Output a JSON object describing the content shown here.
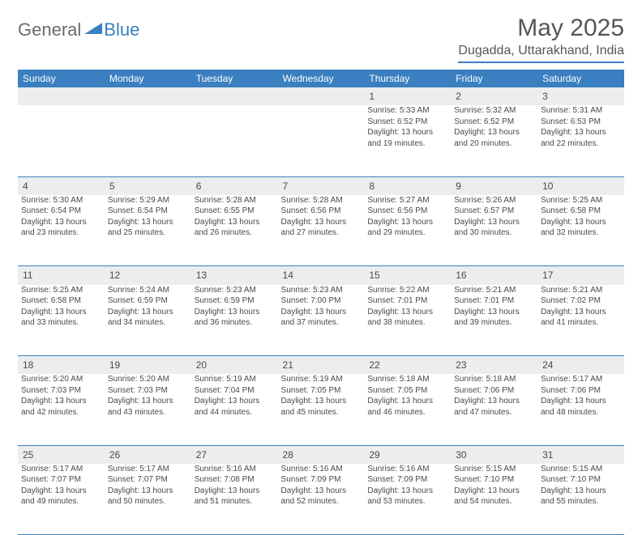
{
  "brand": {
    "name_a": "General",
    "name_b": "Blue"
  },
  "title": "May 2025",
  "location": "Dugadda, Uttarakhand, India",
  "colors": {
    "accent": "#3a7fbf",
    "header_text": "#ffffff",
    "daynum_bg": "#eceded"
  },
  "day_headers": [
    "Sunday",
    "Monday",
    "Tuesday",
    "Wednesday",
    "Thursday",
    "Friday",
    "Saturday"
  ],
  "weeks": [
    [
      null,
      null,
      null,
      null,
      {
        "n": "1",
        "sr": "5:33 AM",
        "ss": "6:52 PM",
        "dl": "13 hours and 19 minutes."
      },
      {
        "n": "2",
        "sr": "5:32 AM",
        "ss": "6:52 PM",
        "dl": "13 hours and 20 minutes."
      },
      {
        "n": "3",
        "sr": "5:31 AM",
        "ss": "6:53 PM",
        "dl": "13 hours and 22 minutes."
      }
    ],
    [
      {
        "n": "4",
        "sr": "5:30 AM",
        "ss": "6:54 PM",
        "dl": "13 hours and 23 minutes."
      },
      {
        "n": "5",
        "sr": "5:29 AM",
        "ss": "6:54 PM",
        "dl": "13 hours and 25 minutes."
      },
      {
        "n": "6",
        "sr": "5:28 AM",
        "ss": "6:55 PM",
        "dl": "13 hours and 26 minutes."
      },
      {
        "n": "7",
        "sr": "5:28 AM",
        "ss": "6:56 PM",
        "dl": "13 hours and 27 minutes."
      },
      {
        "n": "8",
        "sr": "5:27 AM",
        "ss": "6:56 PM",
        "dl": "13 hours and 29 minutes."
      },
      {
        "n": "9",
        "sr": "5:26 AM",
        "ss": "6:57 PM",
        "dl": "13 hours and 30 minutes."
      },
      {
        "n": "10",
        "sr": "5:25 AM",
        "ss": "6:58 PM",
        "dl": "13 hours and 32 minutes."
      }
    ],
    [
      {
        "n": "11",
        "sr": "5:25 AM",
        "ss": "6:58 PM",
        "dl": "13 hours and 33 minutes."
      },
      {
        "n": "12",
        "sr": "5:24 AM",
        "ss": "6:59 PM",
        "dl": "13 hours and 34 minutes."
      },
      {
        "n": "13",
        "sr": "5:23 AM",
        "ss": "6:59 PM",
        "dl": "13 hours and 36 minutes."
      },
      {
        "n": "14",
        "sr": "5:23 AM",
        "ss": "7:00 PM",
        "dl": "13 hours and 37 minutes."
      },
      {
        "n": "15",
        "sr": "5:22 AM",
        "ss": "7:01 PM",
        "dl": "13 hours and 38 minutes."
      },
      {
        "n": "16",
        "sr": "5:21 AM",
        "ss": "7:01 PM",
        "dl": "13 hours and 39 minutes."
      },
      {
        "n": "17",
        "sr": "5:21 AM",
        "ss": "7:02 PM",
        "dl": "13 hours and 41 minutes."
      }
    ],
    [
      {
        "n": "18",
        "sr": "5:20 AM",
        "ss": "7:03 PM",
        "dl": "13 hours and 42 minutes."
      },
      {
        "n": "19",
        "sr": "5:20 AM",
        "ss": "7:03 PM",
        "dl": "13 hours and 43 minutes."
      },
      {
        "n": "20",
        "sr": "5:19 AM",
        "ss": "7:04 PM",
        "dl": "13 hours and 44 minutes."
      },
      {
        "n": "21",
        "sr": "5:19 AM",
        "ss": "7:05 PM",
        "dl": "13 hours and 45 minutes."
      },
      {
        "n": "22",
        "sr": "5:18 AM",
        "ss": "7:05 PM",
        "dl": "13 hours and 46 minutes."
      },
      {
        "n": "23",
        "sr": "5:18 AM",
        "ss": "7:06 PM",
        "dl": "13 hours and 47 minutes."
      },
      {
        "n": "24",
        "sr": "5:17 AM",
        "ss": "7:06 PM",
        "dl": "13 hours and 48 minutes."
      }
    ],
    [
      {
        "n": "25",
        "sr": "5:17 AM",
        "ss": "7:07 PM",
        "dl": "13 hours and 49 minutes."
      },
      {
        "n": "26",
        "sr": "5:17 AM",
        "ss": "7:07 PM",
        "dl": "13 hours and 50 minutes."
      },
      {
        "n": "27",
        "sr": "5:16 AM",
        "ss": "7:08 PM",
        "dl": "13 hours and 51 minutes."
      },
      {
        "n": "28",
        "sr": "5:16 AM",
        "ss": "7:09 PM",
        "dl": "13 hours and 52 minutes."
      },
      {
        "n": "29",
        "sr": "5:16 AM",
        "ss": "7:09 PM",
        "dl": "13 hours and 53 minutes."
      },
      {
        "n": "30",
        "sr": "5:15 AM",
        "ss": "7:10 PM",
        "dl": "13 hours and 54 minutes."
      },
      {
        "n": "31",
        "sr": "5:15 AM",
        "ss": "7:10 PM",
        "dl": "13 hours and 55 minutes."
      }
    ]
  ],
  "labels": {
    "sunrise": "Sunrise: ",
    "sunset": "Sunset: ",
    "daylight": "Daylight: "
  }
}
